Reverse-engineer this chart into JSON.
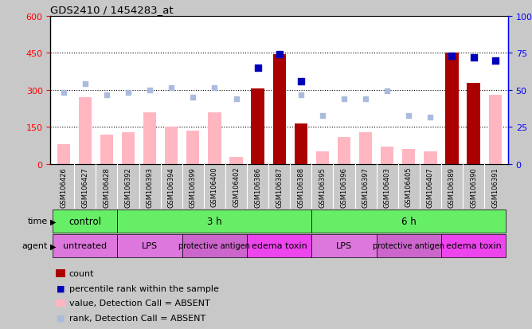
{
  "title": "GDS2410 / 1454283_at",
  "samples": [
    "GSM106426",
    "GSM106427",
    "GSM106428",
    "GSM106392",
    "GSM106393",
    "GSM106394",
    "GSM106399",
    "GSM106400",
    "GSM106402",
    "GSM106386",
    "GSM106387",
    "GSM106388",
    "GSM106395",
    "GSM106396",
    "GSM106397",
    "GSM106403",
    "GSM106405",
    "GSM106407",
    "GSM106389",
    "GSM106390",
    "GSM106391"
  ],
  "count_values": [
    0,
    0,
    0,
    0,
    0,
    0,
    0,
    0,
    0,
    305,
    445,
    165,
    0,
    0,
    0,
    0,
    0,
    0,
    450,
    330,
    0
  ],
  "value_absent": [
    80,
    270,
    120,
    130,
    210,
    150,
    135,
    210,
    30,
    0,
    0,
    60,
    50,
    110,
    130,
    70,
    60,
    50,
    0,
    0,
    280
  ],
  "rank_absent_vals": [
    290,
    325,
    280,
    290,
    300,
    310,
    270,
    310,
    265,
    0,
    0,
    280,
    195,
    265,
    265,
    295,
    195,
    190,
    0,
    0,
    0
  ],
  "pct_values_raw": [
    0,
    0,
    0,
    0,
    0,
    0,
    0,
    0,
    0,
    65,
    74,
    56,
    0,
    0,
    0,
    0,
    0,
    0,
    73,
    72,
    70
  ],
  "time_groups": [
    {
      "label": "control",
      "start": 0,
      "end": 3
    },
    {
      "label": "3 h",
      "start": 3,
      "end": 12
    },
    {
      "label": "6 h",
      "start": 12,
      "end": 21
    }
  ],
  "agent_groups": [
    {
      "label": "untreated",
      "start": 0,
      "end": 3,
      "color": "#CC66CC"
    },
    {
      "label": "LPS",
      "start": 3,
      "end": 6,
      "color": "#CC66CC"
    },
    {
      "label": "protective antigen",
      "start": 6,
      "end": 9,
      "color": "#CC66CC"
    },
    {
      "label": "edema toxin",
      "start": 9,
      "end": 12,
      "color": "#CC44CC"
    },
    {
      "label": "LPS",
      "start": 12,
      "end": 15,
      "color": "#CC66CC"
    },
    {
      "label": "protective antigen",
      "start": 15,
      "end": 18,
      "color": "#CC66CC"
    },
    {
      "label": "edema toxin",
      "start": 18,
      "end": 21,
      "color": "#CC44CC"
    }
  ],
  "ylim_left": [
    0,
    600
  ],
  "ylim_right": [
    0,
    100
  ],
  "yticks_left": [
    0,
    150,
    300,
    450,
    600
  ],
  "yticks_right": [
    0,
    25,
    50,
    75,
    100
  ],
  "bar_color_count": "#AA0000",
  "bar_color_absent": "#FFB6C1",
  "dot_color_pct": "#0000BB",
  "dot_color_rank_absent": "#AABBDD",
  "bg_color": "#C8C8C8",
  "plot_bg_color": "#FFFFFF",
  "time_color": "#66EE66",
  "agent_color_main": "#DD66DD",
  "agent_color_alt": "#CC44CC",
  "xtick_bg": "#C0C0C0"
}
